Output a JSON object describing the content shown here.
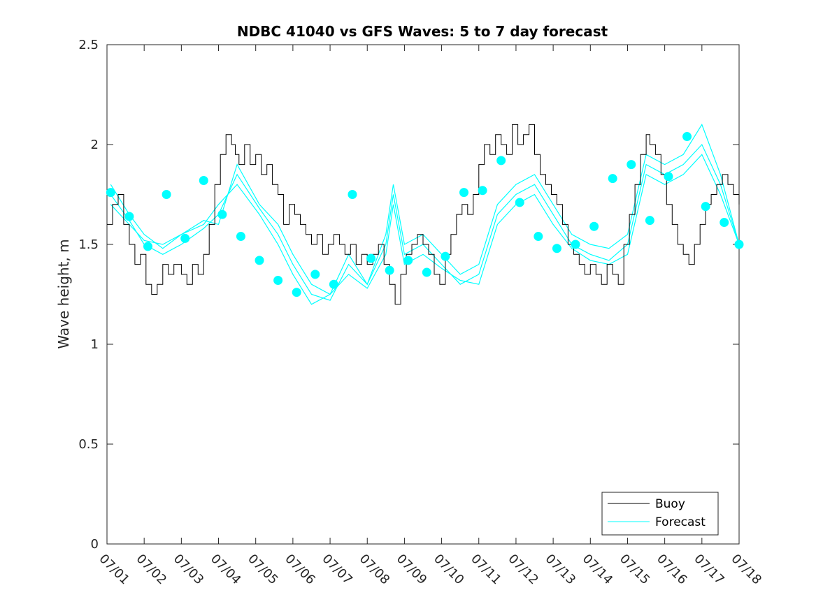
{
  "chart_data": {
    "type": "line",
    "title": "NDBC 41040 vs GFS Waves: 5 to 7 day forecast",
    "xlabel": "",
    "ylabel": "Wave height, m",
    "xlim": [
      "07/01",
      "07/18"
    ],
    "ylim": [
      0,
      2.5
    ],
    "y_ticks": [
      0,
      0.5,
      1,
      1.5,
      2,
      2.5
    ],
    "y_tick_labels": [
      "0",
      "0.5",
      "1",
      "1.5",
      "2",
      "2.5"
    ],
    "x_ticks": [
      "07/01",
      "07/02",
      "07/03",
      "07/04",
      "07/05",
      "07/06",
      "07/07",
      "07/08",
      "07/09",
      "07/10",
      "07/11",
      "07/12",
      "07/13",
      "07/14",
      "07/15",
      "07/16",
      "07/17",
      "07/18"
    ],
    "grid": false,
    "legend": {
      "position": "bottom-right",
      "entries": [
        "Buoy",
        "Forecast"
      ]
    },
    "colors": {
      "buoy": "#000000",
      "forecast": "#00ffff",
      "marker": "#00ffff",
      "axis": "#262626"
    },
    "buoy": {
      "name": "Buoy",
      "x_days": [
        0,
        0.15,
        0.3,
        0.45,
        0.6,
        0.75,
        0.9,
        1.05,
        1.2,
        1.35,
        1.5,
        1.65,
        1.8,
        2.0,
        2.15,
        2.3,
        2.45,
        2.6,
        2.75,
        2.9,
        3.05,
        3.2,
        3.35,
        3.45,
        3.55,
        3.7,
        3.85,
        4.0,
        4.15,
        4.3,
        4.45,
        4.6,
        4.75,
        4.9,
        5.05,
        5.2,
        5.35,
        5.5,
        5.65,
        5.8,
        5.95,
        6.1,
        6.25,
        6.4,
        6.55,
        6.7,
        6.85,
        7.0,
        7.15,
        7.3,
        7.45,
        7.6,
        7.75,
        7.9,
        8.05,
        8.2,
        8.35,
        8.5,
        8.65,
        8.8,
        8.95,
        9.1,
        9.25,
        9.4,
        9.55,
        9.7,
        9.85,
        10.0,
        10.15,
        10.3,
        10.45,
        10.6,
        10.75,
        10.9,
        11.05,
        11.2,
        11.35,
        11.5,
        11.65,
        11.8,
        11.95,
        12.1,
        12.25,
        12.4,
        12.55,
        12.7,
        12.85,
        13.0,
        13.15,
        13.3,
        13.45,
        13.6,
        13.75,
        13.9,
        14.05,
        14.2,
        14.35,
        14.5,
        14.6,
        14.75,
        14.9,
        15.05,
        15.2,
        15.35,
        15.5,
        15.65,
        15.8,
        15.95,
        16.1,
        16.25,
        16.4,
        16.55,
        16.7,
        16.85,
        17.0
      ],
      "values": [
        1.6,
        1.7,
        1.75,
        1.6,
        1.5,
        1.4,
        1.45,
        1.3,
        1.25,
        1.3,
        1.4,
        1.35,
        1.4,
        1.35,
        1.3,
        1.4,
        1.35,
        1.45,
        1.6,
        1.8,
        1.95,
        2.05,
        2.0,
        1.95,
        1.9,
        2.0,
        1.9,
        1.95,
        1.85,
        1.9,
        1.8,
        1.75,
        1.6,
        1.7,
        1.65,
        1.6,
        1.55,
        1.5,
        1.55,
        1.45,
        1.5,
        1.55,
        1.5,
        1.45,
        1.5,
        1.4,
        1.45,
        1.4,
        1.45,
        1.5,
        1.4,
        1.3,
        1.2,
        1.35,
        1.45,
        1.5,
        1.55,
        1.5,
        1.45,
        1.35,
        1.3,
        1.45,
        1.55,
        1.65,
        1.7,
        1.65,
        1.75,
        1.9,
        2.0,
        1.95,
        2.05,
        2.0,
        1.95,
        2.1,
        2.0,
        2.05,
        2.1,
        1.95,
        1.85,
        1.8,
        1.75,
        1.7,
        1.6,
        1.5,
        1.45,
        1.4,
        1.35,
        1.4,
        1.35,
        1.3,
        1.4,
        1.35,
        1.3,
        1.5,
        1.65,
        1.8,
        1.95,
        2.05,
        2.0,
        1.95,
        1.85,
        1.7,
        1.6,
        1.5,
        1.45,
        1.4,
        1.5,
        1.6,
        1.7,
        1.75,
        1.8,
        1.85,
        1.8,
        1.75,
        1.7
      ]
    },
    "forecast_lines": [
      {
        "x_days": [
          0.1,
          0.6,
          1.0,
          1.5,
          2.0,
          2.6,
          3.0,
          3.5,
          4.1,
          4.6,
          5.0,
          5.5,
          6.0,
          6.5,
          7.0,
          7.5,
          7.7,
          8.0,
          8.5,
          9.0,
          9.5,
          10.0,
          10.5,
          11.0,
          11.5,
          12.0,
          12.5,
          13.0,
          13.5,
          14.0,
          14.5,
          15.0,
          15.5,
          16.0,
          16.5,
          17.0
        ],
        "values": [
          1.8,
          1.65,
          1.55,
          1.48,
          1.55,
          1.62,
          1.6,
          1.9,
          1.7,
          1.6,
          1.45,
          1.3,
          1.25,
          1.45,
          1.3,
          1.55,
          1.8,
          1.5,
          1.55,
          1.45,
          1.35,
          1.4,
          1.7,
          1.8,
          1.85,
          1.7,
          1.55,
          1.5,
          1.48,
          1.55,
          1.95,
          1.9,
          1.95,
          2.1,
          1.85,
          1.5
        ]
      },
      {
        "x_days": [
          0.1,
          0.6,
          1.0,
          1.5,
          2.0,
          2.6,
          3.0,
          3.5,
          4.1,
          4.6,
          5.0,
          5.5,
          6.0,
          6.5,
          7.0,
          7.5,
          7.7,
          8.0,
          8.5,
          9.0,
          9.5,
          10.0,
          10.5,
          11.0,
          11.5,
          12.0,
          12.5,
          13.0,
          13.5,
          14.0,
          14.5,
          15.0,
          15.5,
          16.0,
          16.5,
          17.0
        ],
        "values": [
          1.75,
          1.62,
          1.5,
          1.45,
          1.5,
          1.58,
          1.65,
          1.85,
          1.68,
          1.55,
          1.4,
          1.25,
          1.22,
          1.4,
          1.3,
          1.5,
          1.75,
          1.45,
          1.5,
          1.4,
          1.3,
          1.35,
          1.65,
          1.75,
          1.8,
          1.65,
          1.5,
          1.45,
          1.42,
          1.5,
          1.9,
          1.85,
          1.9,
          2.0,
          1.8,
          1.5
        ]
      },
      {
        "x_days": [
          0.1,
          0.6,
          1.0,
          1.5,
          2.0,
          2.6,
          3.0,
          3.5,
          4.1,
          4.6,
          5.0,
          5.5,
          6.0,
          6.5,
          7.0,
          7.5,
          7.7,
          8.0,
          8.5,
          9.0,
          9.5,
          10.0,
          10.5,
          11.0,
          11.5,
          12.0,
          12.5,
          13.0,
          13.5,
          14.0,
          14.5,
          15.0,
          15.5,
          16.0,
          16.5,
          17.0
        ],
        "values": [
          1.7,
          1.6,
          1.52,
          1.5,
          1.55,
          1.6,
          1.7,
          1.8,
          1.65,
          1.5,
          1.35,
          1.2,
          1.25,
          1.35,
          1.28,
          1.45,
          1.7,
          1.4,
          1.45,
          1.38,
          1.32,
          1.3,
          1.6,
          1.7,
          1.75,
          1.6,
          1.48,
          1.42,
          1.4,
          1.45,
          1.85,
          1.8,
          1.85,
          1.95,
          1.75,
          1.5
        ]
      }
    ],
    "forecast_markers": {
      "x_days": [
        0.1,
        0.6,
        1.1,
        1.6,
        2.1,
        2.6,
        3.1,
        3.6,
        4.1,
        4.6,
        5.1,
        5.6,
        6.1,
        6.6,
        7.1,
        7.6,
        8.1,
        8.6,
        9.1,
        9.6,
        10.1,
        10.6,
        11.1,
        11.6,
        12.1,
        12.6,
        13.1,
        13.6,
        14.1,
        14.6,
        15.1,
        15.6,
        16.1,
        16.6,
        17.0
      ],
      "values": [
        1.76,
        1.64,
        1.49,
        1.75,
        1.53,
        1.82,
        1.65,
        1.54,
        1.42,
        1.32,
        1.26,
        1.35,
        1.3,
        1.75,
        1.43,
        1.37,
        1.42,
        1.36,
        1.44,
        1.76,
        1.77,
        1.92,
        1.71,
        1.54,
        1.48,
        1.5,
        1.59,
        1.83,
        1.9,
        1.62,
        1.84,
        2.04,
        1.69,
        1.61,
        1.5
      ]
    }
  }
}
